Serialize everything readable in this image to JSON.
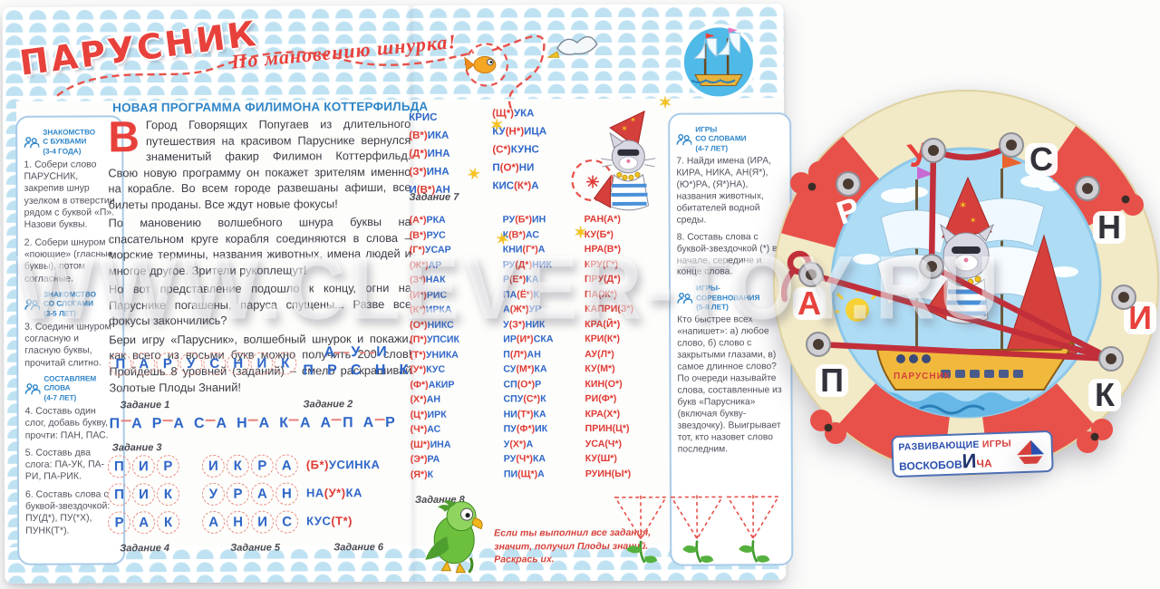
{
  "watermark": "WWW.CLEVER-TOY.RU",
  "masthead": {
    "title": "ПАРУСНИК",
    "tagline": "По мановению шнурка!",
    "heading": "НОВАЯ ПРОГРАММА ФИЛИМОНА КОТТЕРФИЛЬДА"
  },
  "story": {
    "dropcap": "В",
    "p1": "Город Говорящих Попугаев из длительного путешествия на красивом Паруснике вернулся знаменитый факир Филимон Коттерфильд. Свою новую программу он покажет зрителям именно на корабле. Во всем городе развешаны афиши, все билеты проданы. Все ждут новые фокусы!",
    "p2": "По мановению волшебного шнура буквы на спасательном круге корабля соединяются в слова – морские термины, названия животных, имена людей и многое другое. Зрители рукоплещут!",
    "p3": "Но вот представление подошло к концу, огни на Паруснике погашены, паруса спущены... Разве все фокусы закончились?",
    "p4": "Бери игру «Парусник», волшебный шнурок и покажи, как всего из восьми букв можно получить 200 слов! Пройдешь 8 уровней (заданий) – смело раскрашивай Золотые Плоды Знаний!"
  },
  "left_sidebar": {
    "s1_title": "ЗНАКОМСТВО\nС БУКВАМИ\n(3-4 ГОДА)",
    "s1_items": [
      "1. Собери слово ПАРУСНИК, закрепив шнур узелком в отверстии рядом с буквой «П». Назови буквы.",
      "2. Собери шнуром «поющие» (гласные буквы), потом согласные."
    ],
    "s2_title": "ЗНАКОМСТВО\nСО СЛОГАМИ\n(3-5 ЛЕТ)",
    "s2_items": [
      "3. Соедини шнуром согласную и гласную буквы, прочитай слитно."
    ],
    "s3_title": "СОСТАВЛЯЕМ\nСЛОВА\n(4-7 ЛЕТ)",
    "s3_items": [
      "4. Составь один слог, добавь букву, прочти: ПАН, ПАС.",
      "5. Составь два слога: ПА-УК, ПА-РИ, ПА-РИК.",
      "6. Составь слова с буквой-звездочкой: ПУ(Д*), ПУ(*Х), ПУНК(Т*)."
    ]
  },
  "right_sidebar": {
    "s1_title": "ИГРЫ\nСО СЛОВАМИ\n(4-7 ЛЕТ)",
    "s1_items": [
      "7. Найди имена (ИРА, КИРА, НИКА, АН(Я*), (Ю*)РА, (Я*)НА), названия животных, обитателей водной среды.",
      "8. Составь слова с буквой-звездочкой (*) в начале, середине и конце слова."
    ],
    "s2_title": "ИГРЫ-\nСОРЕВНОВАНИЯ\n(5-8 ЛЕТ)",
    "s2_items": [
      "Кто быстрее всех «напишет»: а) любое слово, б) слово с закрытыми глазами, в) самое длинное слово? По очереди называйте слова, составленные из букв «Парусника» (включая букву-звездочку). Выигрывает тот, кто назовет слово последним."
    ]
  },
  "tasks": {
    "t1": {
      "label": "Задание 1",
      "letters": [
        "П",
        "А",
        "Р",
        "У",
        "С",
        "Н",
        "И",
        "К"
      ]
    },
    "t2": {
      "label": "Задание 2",
      "top": [
        "А",
        "У",
        "И"
      ],
      "bottom": [
        "П",
        "Р",
        "С",
        "Н",
        "К"
      ]
    },
    "t3": {
      "label": "Задание 3",
      "pairs": [
        "П-А",
        "Р-А",
        "С-А",
        "Н-А",
        "К-А",
        "А-П",
        "А-Р"
      ]
    },
    "t4": {
      "label": "Задание 4",
      "rows": [
        "ПИР",
        "ПИК",
        "РАК"
      ]
    },
    "t5": {
      "label": "Задание 5",
      "rows": [
        "ИКРА",
        "УРАН",
        "АНИС"
      ]
    },
    "t6": {
      "label": "Задание 6",
      "words": [
        "(Б*)УСИНКА",
        "НА(У*)КА",
        "КУС(Т*)"
      ]
    },
    "t7": {
      "label": "Задание 7",
      "col1": [
        "КРИС",
        "(В*)ИКА",
        "(Д*)ИНА",
        "(З*)ИНА",
        "И(В*)АН"
      ],
      "col2": [
        "(Щ*)УКА",
        "КУ(Н*)ИЦА",
        "(С*)КУНС",
        "П(О*)НИ",
        "КИС(К*)А"
      ]
    },
    "t8": {
      "label": "Задание 8",
      "col1": [
        "(А*)РКА",
        "(В*)РУС",
        "(Г*)УСАР",
        "(Ж*)АР",
        "(З*)НАК",
        "(И*)РИС",
        "(К*)ИРКА",
        "(О*)НИКС",
        "(П*)УПСИК",
        "(Т*)УНИКА",
        "(У*)КУС",
        "(Ф*)АКИР",
        "(Х*)АН",
        "(Ц*)ИРК",
        "(Ч*)АС",
        "(Ш*)ИНА",
        "(Э*)РА",
        "(Я*)К"
      ],
      "col2": [
        "РУ(Б*)ИН",
        "К(В*)АС",
        "КНИ(Г*)А",
        "РУ(Д*)НИК",
        "Р(Е*)КА",
        "ПА(Ё*)К",
        "А(Ж*)УР",
        "У(З*)НИК",
        "ИР(И*)СКА",
        "П(Л*)АН",
        "СУ(М*)КА",
        "СП(О*)Р",
        "СПУ(С*)К",
        "НИ(Т*)КА",
        "ПУ(Ф*)ИК",
        "У(Х*)А",
        "РУ(Ч*)КА",
        "ПИ(Щ*)А"
      ],
      "col3": [
        "РАН(А*)",
        "КУ(Б*)",
        "НРА(В*)",
        "КРУ(Г*)",
        "ПРУ(Д*)",
        "ПА(Ж*)",
        "КАПРИ(З*)",
        "КРА(Й*)",
        "КРИ(К*)",
        "АУ(Л*)",
        "КУ(М*)",
        "КИН(О*)",
        "РИ(Ф*)",
        "КРА(Х*)",
        "ПРИН(Ц*)",
        "УСА(Ч*)",
        "КУ(Ш*)",
        "РУИН(Ы*)"
      ]
    }
  },
  "footer_note": "Если ты выполнил все задания,\nзначит, получил Плоды знаний.\nРаскрась их.",
  "board": {
    "ship_label": "ПАРУСНИК",
    "letters": [
      {
        "ch": "П",
        "color": "#33323a"
      },
      {
        "ch": "А",
        "color": "#e8413c"
      },
      {
        "ch": "Р",
        "color": "#ffffff"
      },
      {
        "ch": "У",
        "color": "#e8413c"
      },
      {
        "ch": "С",
        "color": "#33323a"
      },
      {
        "ch": "Н",
        "color": "#33323a"
      },
      {
        "ch": "И",
        "color": "#e8413c"
      },
      {
        "ch": "К",
        "color": "#33323a"
      }
    ],
    "brand": {
      "w1": "РАЗВИВАЮЩИЕ",
      "w2": "ИГРЫ",
      "w3": "ВОСКОБОВ",
      "big": "И",
      "w4": "ЧА"
    }
  }
}
